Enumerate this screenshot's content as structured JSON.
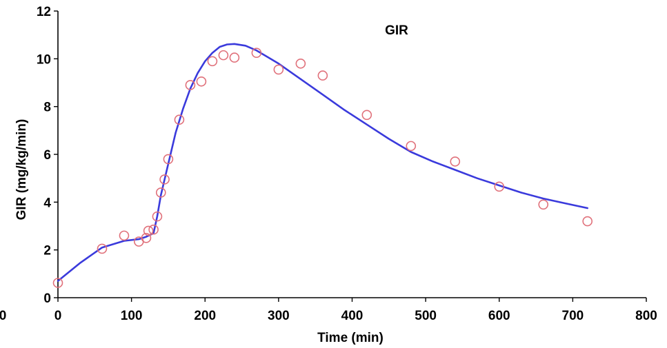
{
  "chart_data": {
    "type": "scatter",
    "title": "GIR",
    "xlabel": "Time (min)",
    "ylabel": "GIR (mg/kg/min)",
    "xlim": [
      0,
      800
    ],
    "ylim": [
      0,
      12
    ],
    "x_ticks": [
      0,
      100,
      200,
      300,
      400,
      500,
      600,
      700,
      800
    ],
    "y_ticks": [
      0,
      2,
      4,
      6,
      8,
      10,
      12
    ],
    "x_tick_labels": [
      "0",
      "100",
      "200",
      "300",
      "400",
      "500",
      "600",
      "700",
      "800"
    ],
    "y_tick_labels": [
      "0",
      "2",
      "4",
      "6",
      "8",
      "10",
      "12"
    ],
    "stray_labels": [
      "0"
    ],
    "grid": false,
    "legend": "none",
    "series": [
      {
        "kind": "scatter",
        "marker": "open-circle",
        "color": "#e0707a",
        "points": [
          [
            0,
            0.62
          ],
          [
            60,
            2.05
          ],
          [
            90,
            2.6
          ],
          [
            110,
            2.35
          ],
          [
            120,
            2.5
          ],
          [
            123,
            2.8
          ],
          [
            130,
            2.85
          ],
          [
            135,
            3.4
          ],
          [
            140,
            4.4
          ],
          [
            145,
            4.95
          ],
          [
            150,
            5.8
          ],
          [
            165,
            7.45
          ],
          [
            180,
            8.9
          ],
          [
            195,
            9.05
          ],
          [
            210,
            9.9
          ],
          [
            225,
            10.15
          ],
          [
            240,
            10.05
          ],
          [
            270,
            10.25
          ],
          [
            300,
            9.55
          ],
          [
            330,
            9.8
          ],
          [
            360,
            9.3
          ],
          [
            420,
            7.65
          ],
          [
            480,
            6.35
          ],
          [
            540,
            5.7
          ],
          [
            600,
            4.65
          ],
          [
            660,
            3.9
          ],
          [
            720,
            3.2
          ]
        ]
      },
      {
        "kind": "line",
        "color": "#3a3adc",
        "points": [
          [
            0,
            0.7
          ],
          [
            30,
            1.45
          ],
          [
            60,
            2.1
          ],
          [
            90,
            2.38
          ],
          [
            110,
            2.45
          ],
          [
            120,
            2.55
          ],
          [
            130,
            2.7
          ],
          [
            135,
            3.4
          ],
          [
            140,
            4.3
          ],
          [
            150,
            5.6
          ],
          [
            160,
            6.9
          ],
          [
            170,
            7.9
          ],
          [
            180,
            8.75
          ],
          [
            190,
            9.4
          ],
          [
            200,
            9.9
          ],
          [
            210,
            10.25
          ],
          [
            220,
            10.5
          ],
          [
            230,
            10.6
          ],
          [
            240,
            10.62
          ],
          [
            255,
            10.55
          ],
          [
            270,
            10.35
          ],
          [
            300,
            9.8
          ],
          [
            330,
            9.15
          ],
          [
            360,
            8.5
          ],
          [
            390,
            7.85
          ],
          [
            420,
            7.25
          ],
          [
            450,
            6.65
          ],
          [
            480,
            6.1
          ],
          [
            510,
            5.7
          ],
          [
            540,
            5.35
          ],
          [
            570,
            5.0
          ],
          [
            600,
            4.7
          ],
          [
            630,
            4.4
          ],
          [
            660,
            4.15
          ],
          [
            690,
            3.95
          ],
          [
            720,
            3.75
          ]
        ]
      }
    ]
  }
}
